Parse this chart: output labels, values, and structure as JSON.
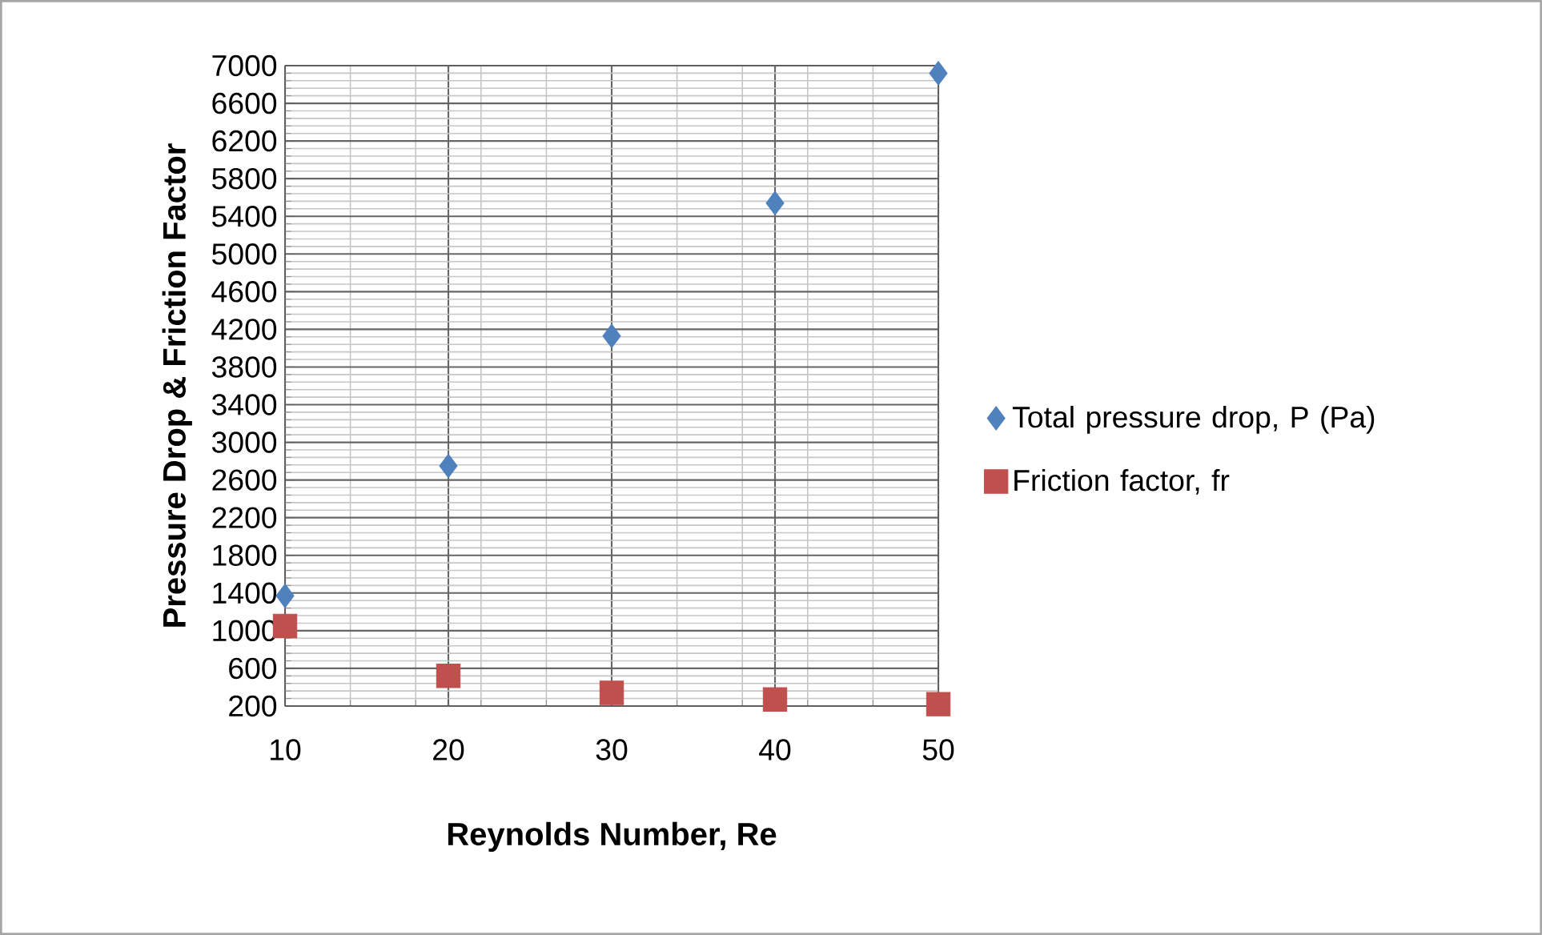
{
  "chart_data": {
    "type": "scatter",
    "xlabel": "Reynolds Number, Re",
    "ylabel": "Pressure Drop & Friction Factor",
    "x": [
      10,
      20,
      30,
      40,
      50
    ],
    "series": [
      {
        "name": "Total pressure drop,  P (Pa)",
        "color": "#4f81bd",
        "marker": "diamond",
        "values": [
          1370,
          2750,
          4130,
          5540,
          6920
        ]
      },
      {
        "name": "Friction factor, fr",
        "color": "#c0504d",
        "marker": "square",
        "values": [
          1050,
          520,
          340,
          270,
          220
        ]
      }
    ],
    "xlim": [
      10,
      50
    ],
    "xticks": [
      10,
      20,
      30,
      40,
      50
    ],
    "ylim": [
      200,
      7000
    ],
    "yticks": [
      200,
      600,
      1000,
      1400,
      1800,
      2200,
      2600,
      3000,
      3400,
      3800,
      4200,
      4600,
      5000,
      5400,
      5800,
      6200,
      6600,
      7000
    ],
    "grid": true,
    "legend": "right"
  }
}
